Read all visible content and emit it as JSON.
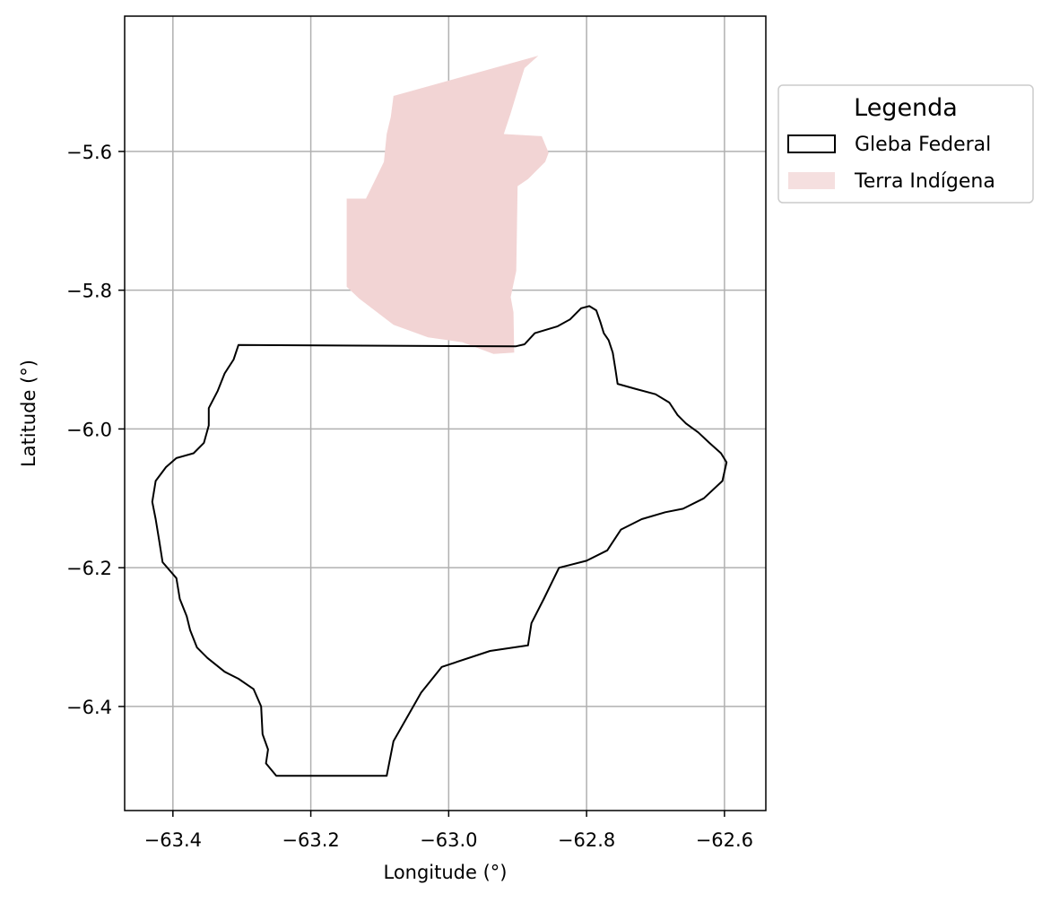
{
  "chart_data": {
    "type": "map",
    "xlabel": "Longitude (°)",
    "ylabel": "Latitude (°)",
    "xlim": [
      -63.47,
      -62.54
    ],
    "ylim": [
      -6.55,
      -5.405
    ],
    "xticks": [
      -63.4,
      -63.2,
      -63.0,
      -62.8,
      -62.6
    ],
    "yticks": [
      -5.6,
      -5.8,
      -6.0,
      -6.2,
      -6.4
    ],
    "xtick_labels": [
      "−63.4",
      "−63.2",
      "−63.0",
      "−62.8",
      "−62.6"
    ],
    "ytick_labels": [
      "−5.6",
      "−5.8",
      "−6.0",
      "−6.2",
      "−6.4"
    ],
    "grid": true,
    "legend": {
      "title": "Legenda",
      "placement": "outside-upper-right",
      "entries": [
        "Gleba Federal",
        "Terra Indígena"
      ]
    },
    "colors": {
      "terra_indigena": "#f2d4d4",
      "gleba_federal": "#000000",
      "grid": "#b0b0b0"
    },
    "series": [
      {
        "name": "Terra Indígena",
        "kind": "filled-polygon",
        "coordinates": [
          [
            -62.87,
            -5.462
          ],
          [
            -63.08,
            -5.52
          ],
          [
            -63.084,
            -5.55
          ],
          [
            -63.09,
            -5.575
          ],
          [
            -63.094,
            -5.615
          ],
          [
            -63.106,
            -5.64
          ],
          [
            -63.12,
            -5.668
          ],
          [
            -63.148,
            -5.668
          ],
          [
            -63.148,
            -5.795
          ],
          [
            -63.13,
            -5.812
          ],
          [
            -63.08,
            -5.85
          ],
          [
            -63.03,
            -5.868
          ],
          [
            -62.98,
            -5.875
          ],
          [
            -62.935,
            -5.892
          ],
          [
            -62.905,
            -5.89
          ],
          [
            -62.906,
            -5.832
          ],
          [
            -62.91,
            -5.81
          ],
          [
            -62.902,
            -5.772
          ],
          [
            -62.9,
            -5.65
          ],
          [
            -62.885,
            -5.64
          ],
          [
            -62.86,
            -5.615
          ],
          [
            -62.855,
            -5.602
          ],
          [
            -62.865,
            -5.578
          ],
          [
            -62.92,
            -5.575
          ],
          [
            -62.91,
            -5.545
          ],
          [
            -62.9,
            -5.512
          ],
          [
            -62.89,
            -5.48
          ],
          [
            -62.87,
            -5.462
          ]
        ]
      },
      {
        "name": "Gleba Federal",
        "kind": "outline-polygon",
        "coordinates": [
          [
            -63.305,
            -5.879
          ],
          [
            -62.903,
            -5.881
          ],
          [
            -62.89,
            -5.878
          ],
          [
            -62.875,
            -5.862
          ],
          [
            -62.842,
            -5.852
          ],
          [
            -62.824,
            -5.842
          ],
          [
            -62.808,
            -5.826
          ],
          [
            -62.796,
            -5.823
          ],
          [
            -62.786,
            -5.829
          ],
          [
            -62.78,
            -5.846
          ],
          [
            -62.775,
            -5.862
          ],
          [
            -62.768,
            -5.872
          ],
          [
            -62.762,
            -5.89
          ],
          [
            -62.758,
            -5.915
          ],
          [
            -62.755,
            -5.935
          ],
          [
            -62.73,
            -5.942
          ],
          [
            -62.7,
            -5.95
          ],
          [
            -62.68,
            -5.962
          ],
          [
            -62.668,
            -5.98
          ],
          [
            -62.656,
            -5.992
          ],
          [
            -62.638,
            -6.005
          ],
          [
            -62.622,
            -6.02
          ],
          [
            -62.605,
            -6.035
          ],
          [
            -62.597,
            -6.048
          ],
          [
            -62.603,
            -6.075
          ],
          [
            -62.63,
            -6.1
          ],
          [
            -62.66,
            -6.115
          ],
          [
            -62.686,
            -6.12
          ],
          [
            -62.72,
            -6.13
          ],
          [
            -62.75,
            -6.145
          ],
          [
            -62.77,
            -6.175
          ],
          [
            -62.8,
            -6.19
          ],
          [
            -62.84,
            -6.2
          ],
          [
            -62.862,
            -6.245
          ],
          [
            -62.88,
            -6.28
          ],
          [
            -62.885,
            -6.312
          ],
          [
            -62.94,
            -6.32
          ],
          [
            -63.01,
            -6.343
          ],
          [
            -63.04,
            -6.38
          ],
          [
            -63.08,
            -6.45
          ],
          [
            -63.09,
            -6.5
          ],
          [
            -63.25,
            -6.5
          ],
          [
            -63.265,
            -6.482
          ],
          [
            -63.262,
            -6.462
          ],
          [
            -63.27,
            -6.44
          ],
          [
            -63.272,
            -6.4
          ],
          [
            -63.283,
            -6.375
          ],
          [
            -63.305,
            -6.36
          ],
          [
            -63.325,
            -6.35
          ],
          [
            -63.35,
            -6.33
          ],
          [
            -63.365,
            -6.315
          ],
          [
            -63.375,
            -6.29
          ],
          [
            -63.38,
            -6.27
          ],
          [
            -63.39,
            -6.245
          ],
          [
            -63.395,
            -6.215
          ],
          [
            -63.415,
            -6.192
          ],
          [
            -63.42,
            -6.16
          ],
          [
            -63.425,
            -6.13
          ],
          [
            -63.43,
            -6.105
          ],
          [
            -63.425,
            -6.075
          ],
          [
            -63.41,
            -6.055
          ],
          [
            -63.395,
            -6.042
          ],
          [
            -63.37,
            -6.035
          ],
          [
            -63.355,
            -6.02
          ],
          [
            -63.348,
            -5.995
          ],
          [
            -63.348,
            -5.97
          ],
          [
            -63.335,
            -5.945
          ],
          [
            -63.325,
            -5.92
          ],
          [
            -63.312,
            -5.9
          ],
          [
            -63.305,
            -5.879
          ]
        ]
      }
    ]
  }
}
